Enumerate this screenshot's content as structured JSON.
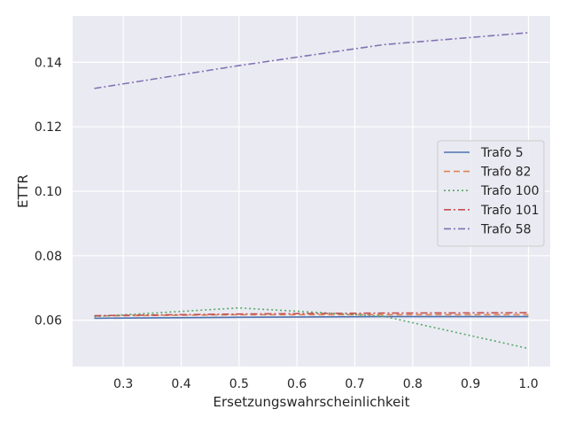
{
  "chart_data": {
    "type": "line",
    "title": "",
    "xlabel": "Ersetzungswahrscheinlichkeit",
    "ylabel": "ETTR",
    "xlim": [
      0.2125,
      1.0375
    ],
    "ylim": [
      0.0456,
      0.1544
    ],
    "xticks": [
      0.3,
      0.4,
      0.5,
      0.6,
      0.7,
      0.8,
      0.9,
      1.0
    ],
    "xtick_labels": [
      "0.3",
      "0.4",
      "0.5",
      "0.6",
      "0.7",
      "0.8",
      "0.9",
      "1.0"
    ],
    "yticks": [
      0.06,
      0.08,
      0.1,
      0.12,
      0.14
    ],
    "ytick_labels": [
      "0.06",
      "0.08",
      "0.10",
      "0.12",
      "0.14"
    ],
    "grid": true,
    "background": "#eaeaf2",
    "legend_position": "right",
    "x": [
      0.25,
      0.5,
      0.75,
      1.0
    ],
    "series": [
      {
        "name": "Trafo 5",
        "color": "#4c72b0",
        "dash": "solid",
        "values": [
          0.0606,
          0.0609,
          0.0611,
          0.0611
        ]
      },
      {
        "name": "Trafo 82",
        "color": "#dd8452",
        "dash": "dashed",
        "values": [
          0.0613,
          0.0617,
          0.0617,
          0.0617
        ]
      },
      {
        "name": "Trafo 100",
        "color": "#55a868",
        "dash": "dotted",
        "values": [
          0.0611,
          0.0638,
          0.0612,
          0.0512
        ]
      },
      {
        "name": "Trafo 101",
        "color": "#c44e52",
        "dash": "dashdot",
        "values": [
          0.0614,
          0.0619,
          0.0622,
          0.0623
        ]
      },
      {
        "name": "Trafo 58",
        "color": "#8172b3",
        "dash": "dashdot",
        "values": [
          0.1319,
          0.139,
          0.1455,
          0.1492
        ]
      }
    ]
  }
}
